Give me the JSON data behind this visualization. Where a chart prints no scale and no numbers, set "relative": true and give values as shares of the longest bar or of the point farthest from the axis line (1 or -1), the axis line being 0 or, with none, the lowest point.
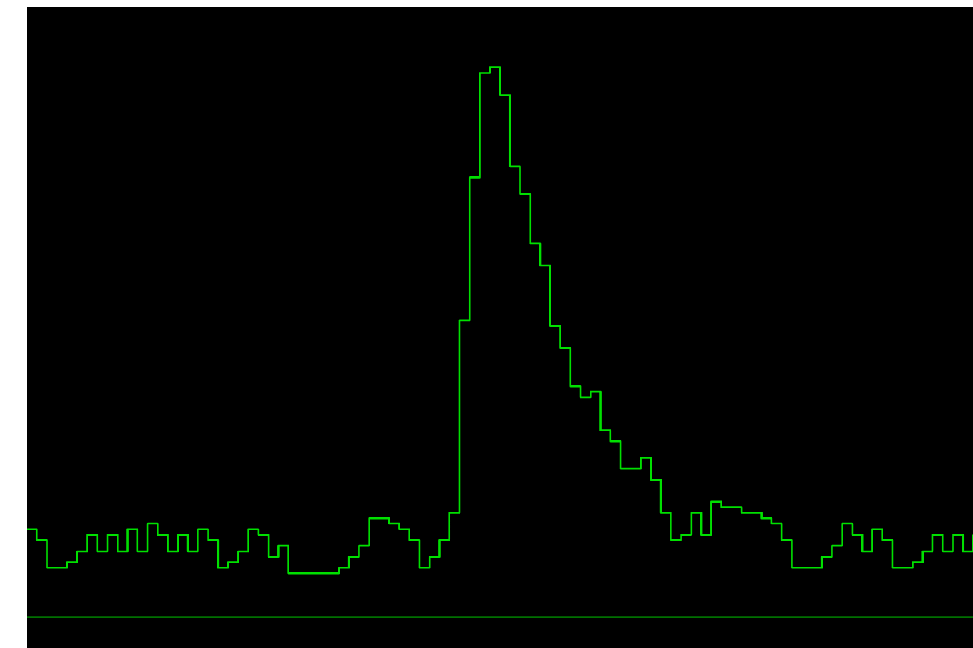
{
  "chart_data": {
    "type": "step",
    "relative": true,
    "tick_labels": false,
    "marker": "none",
    "line_style": "solid",
    "categories": [
      null,
      null,
      null,
      null,
      null,
      null,
      null,
      null,
      null,
      null,
      null,
      null,
      null,
      null,
      null,
      null,
      null,
      null,
      null,
      null,
      null,
      null,
      null,
      null,
      null,
      null,
      null,
      null,
      null,
      null,
      null,
      null,
      null,
      null,
      null,
      null,
      null,
      null,
      null,
      null,
      null,
      null,
      null,
      null,
      null,
      null,
      null,
      null,
      null,
      null,
      null,
      null,
      null,
      null,
      null,
      null,
      null,
      null,
      null,
      null,
      null,
      null,
      null,
      null,
      null,
      null,
      null,
      null,
      null,
      null,
      null,
      null,
      null,
      null,
      null,
      null,
      null,
      null,
      null,
      null,
      null,
      null,
      null,
      null,
      null,
      null,
      null,
      null,
      null,
      null,
      null,
      null,
      null,
      null,
      null
    ],
    "series": [
      {
        "color": "#00e000",
        "values": [
          0.16,
          0.14,
          0.09,
          0.09,
          0.1,
          0.12,
          0.15,
          0.12,
          0.15,
          0.12,
          0.16,
          0.12,
          0.17,
          0.15,
          0.12,
          0.15,
          0.12,
          0.16,
          0.14,
          0.09,
          0.1,
          0.12,
          0.16,
          0.15,
          0.11,
          0.13,
          0.08,
          0.08,
          0.08,
          0.08,
          0.08,
          0.09,
          0.11,
          0.13,
          0.18,
          0.18,
          0.17,
          0.16,
          0.14,
          0.09,
          0.11,
          0.14,
          0.19,
          0.54,
          0.8,
          0.99,
          1,
          0.95,
          0.82,
          0.77,
          0.68,
          0.64,
          0.53,
          0.49,
          0.42,
          0.4,
          0.41,
          0.34,
          0.32,
          0.27,
          0.27,
          0.29,
          0.25,
          0.19,
          0.14,
          0.15,
          0.19,
          0.15,
          0.21,
          0.2,
          0.2,
          0.19,
          0.19,
          0.18,
          0.17,
          0.14,
          0.09,
          0.09,
          0.09,
          0.11,
          0.13,
          0.17,
          0.15,
          0.12,
          0.16,
          0.14,
          0.09,
          0.09,
          0.1,
          0.12,
          0.15,
          0.12,
          0.15,
          0.12,
          0.15
        ]
      }
    ]
  }
}
